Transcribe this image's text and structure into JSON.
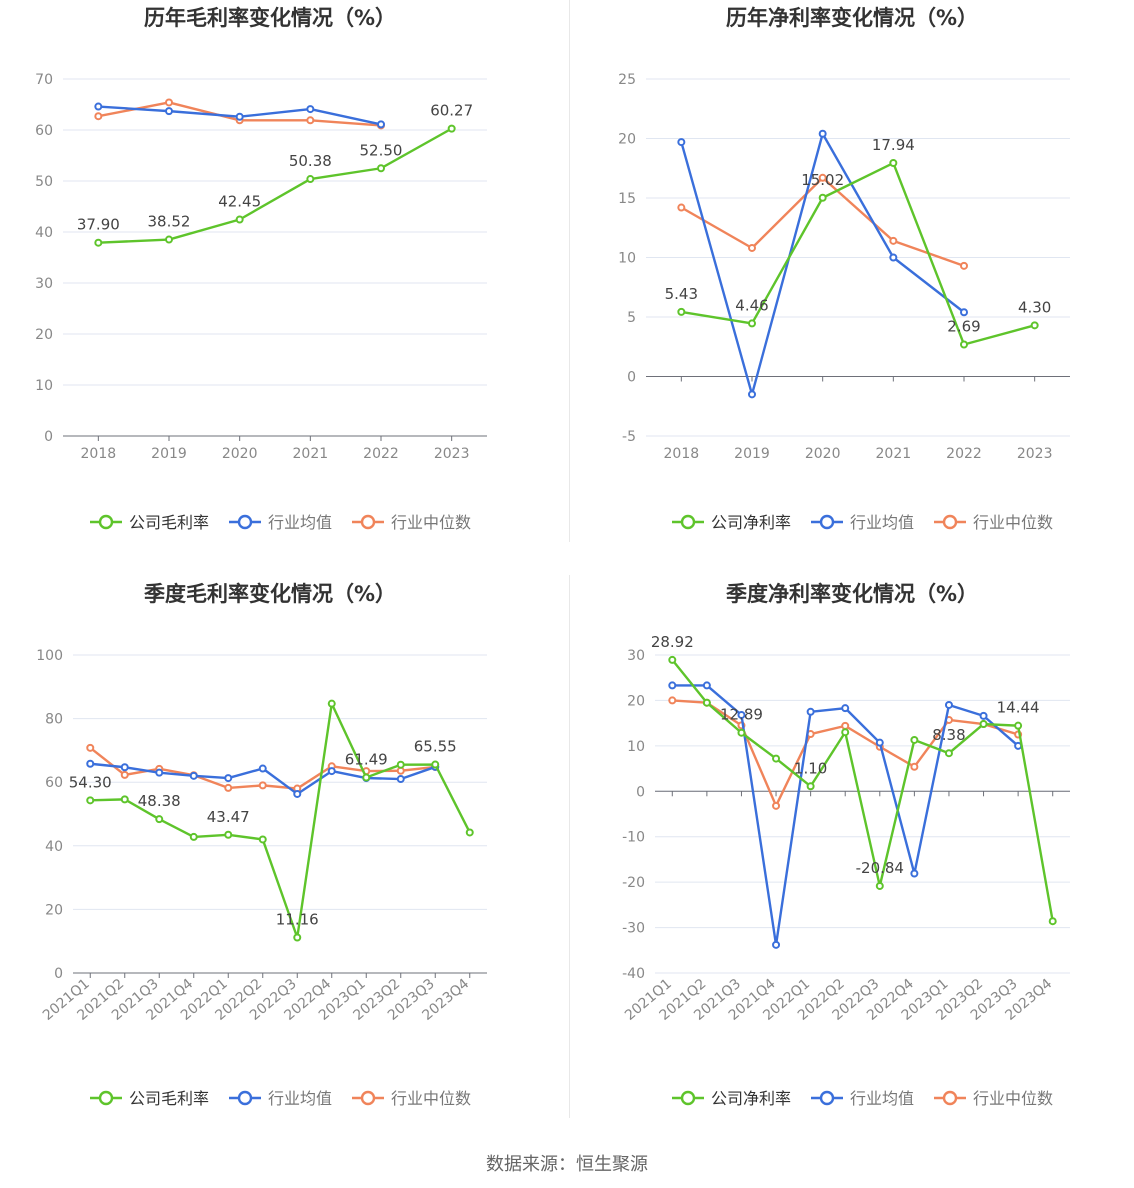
{
  "footer": {
    "source_label": "数据来源：恒生聚源"
  },
  "colors": {
    "company": "#5ec42b",
    "avg": "#3a6fdb",
    "median": "#f0845a",
    "grid": "#e0e6f1",
    "axis": "#888888",
    "title": "#333333"
  },
  "chart_data": [
    {
      "type": "line",
      "title": "历年毛利率变化情况（%）",
      "categories": [
        "2018",
        "2019",
        "2020",
        "2021",
        "2022",
        "2023"
      ],
      "ylim": [
        0,
        70
      ],
      "yticks": [
        0,
        10,
        20,
        30,
        40,
        50,
        60,
        70
      ],
      "rotate_labels": false,
      "series": [
        {
          "name": "公司毛利率",
          "key": "company",
          "values": [
            37.9,
            38.52,
            42.45,
            50.38,
            52.5,
            60.27
          ],
          "labels": [
            "37.90",
            "38.52",
            "42.45",
            "50.38",
            "52.50",
            "60.27"
          ]
        },
        {
          "name": "行业均值",
          "key": "avg",
          "values": [
            64.6,
            63.7,
            62.6,
            64.1,
            61.1,
            null
          ]
        },
        {
          "name": "行业中位数",
          "key": "median",
          "values": [
            62.7,
            65.4,
            61.9,
            61.9,
            60.9,
            null
          ]
        }
      ]
    },
    {
      "type": "line",
      "title": "历年净利率变化情况（%）",
      "categories": [
        "2018",
        "2019",
        "2020",
        "2021",
        "2022",
        "2023"
      ],
      "ylim": [
        -5,
        25
      ],
      "yticks": [
        -5,
        0,
        5,
        10,
        15,
        20,
        25
      ],
      "rotate_labels": false,
      "series": [
        {
          "name": "公司净利率",
          "key": "company",
          "values": [
            5.43,
            4.46,
            15.02,
            17.94,
            2.69,
            4.3
          ],
          "labels": [
            "5.43",
            "4.46",
            "15.02",
            "17.94",
            "2.69",
            "4.30"
          ]
        },
        {
          "name": "行业均值",
          "key": "avg",
          "values": [
            19.7,
            -1.5,
            20.4,
            10.0,
            5.4,
            null
          ]
        },
        {
          "name": "行业中位数",
          "key": "median",
          "values": [
            14.2,
            10.8,
            16.7,
            11.4,
            9.3,
            null
          ]
        }
      ]
    },
    {
      "type": "line",
      "title": "季度毛利率变化情况（%）",
      "categories": [
        "2021Q1",
        "2021Q2",
        "2021Q3",
        "2021Q4",
        "2022Q1",
        "2022Q2",
        "2022Q3",
        "2022Q4",
        "2023Q1",
        "2023Q2",
        "2023Q3",
        "2023Q4"
      ],
      "ylim": [
        0,
        100
      ],
      "yticks": [
        0,
        20,
        40,
        60,
        80,
        100
      ],
      "rotate_labels": true,
      "series": [
        {
          "name": "公司毛利率",
          "key": "company",
          "values": [
            54.3,
            54.6,
            48.38,
            42.8,
            43.47,
            42.0,
            11.16,
            84.7,
            61.49,
            65.5,
            65.55,
            44.2
          ],
          "labels": [
            "54.30",
            "",
            "48.38",
            "",
            "43.47",
            "",
            "11.16",
            "",
            "61.49",
            "",
            "65.55",
            ""
          ]
        },
        {
          "name": "行业均值",
          "key": "avg",
          "values": [
            65.8,
            64.7,
            63.0,
            62.0,
            61.3,
            64.3,
            56.3,
            63.5,
            61.3,
            61.0,
            64.8,
            null
          ]
        },
        {
          "name": "行业中位数",
          "key": "median",
          "values": [
            70.8,
            62.3,
            64.2,
            62.2,
            58.2,
            59.0,
            58.0,
            65.0,
            63.5,
            63.6,
            64.8,
            null
          ]
        }
      ]
    },
    {
      "type": "line",
      "title": "季度净利率变化情况（%）",
      "categories": [
        "2021Q1",
        "2021Q2",
        "2021Q3",
        "2021Q4",
        "2022Q1",
        "2022Q2",
        "2022Q3",
        "2022Q4",
        "2023Q1",
        "2023Q2",
        "2023Q3",
        "2023Q4"
      ],
      "ylim": [
        -40,
        30
      ],
      "yticks": [
        -40,
        -30,
        -20,
        -10,
        0,
        10,
        20,
        30
      ],
      "rotate_labels": true,
      "series": [
        {
          "name": "公司净利率",
          "key": "company",
          "values": [
            28.92,
            19.5,
            12.89,
            7.2,
            1.1,
            13.0,
            -20.84,
            11.3,
            8.38,
            14.8,
            14.44,
            -28.6
          ],
          "labels": [
            "28.92",
            "",
            "12.89",
            "",
            "1.10",
            "",
            "-20.84",
            "",
            "8.38",
            "",
            "14.44",
            ""
          ]
        },
        {
          "name": "行业均值",
          "key": "avg",
          "values": [
            23.3,
            23.3,
            16.8,
            -33.8,
            17.5,
            18.3,
            10.7,
            -18.1,
            19.0,
            16.6,
            10.0,
            null
          ]
        },
        {
          "name": "行业中位数",
          "key": "median",
          "values": [
            20.0,
            19.5,
            14.5,
            -3.2,
            12.6,
            14.4,
            9.8,
            5.4,
            15.7,
            14.8,
            12.5,
            null
          ]
        }
      ]
    }
  ]
}
